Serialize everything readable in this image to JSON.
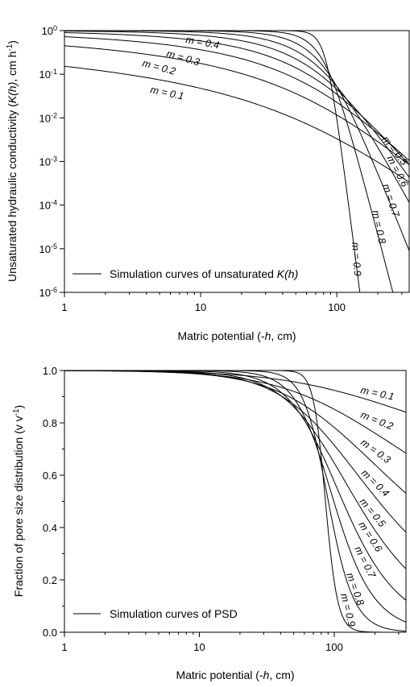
{
  "chart_data": [
    {
      "type": "line",
      "xlabel_prefix": "Matric potential (-",
      "xlabel_var": "h",
      "xlabel_suffix": ", cm)",
      "ylabel_prefix": "Unsaturated hydraulic conductivity (",
      "ylabel_var": "K(h)",
      "ylabel_suffix": ", cm h",
      "ylabel_sup": "-1",
      "ylabel_end": ")",
      "x_scale": "log",
      "y_scale": "log",
      "xlim": [
        1,
        340
      ],
      "ylim": [
        1e-06,
        1
      ],
      "x_ticks": [
        {
          "value": 1,
          "label": "1"
        },
        {
          "value": 10,
          "label": "10"
        },
        {
          "value": 100,
          "label": "100"
        }
      ],
      "y_ticks": [
        {
          "value": 1,
          "base": "10",
          "exp": "0"
        },
        {
          "value": 0.1,
          "base": "10",
          "exp": "-1"
        },
        {
          "value": 0.01,
          "base": "10",
          "exp": "-2"
        },
        {
          "value": 0.001,
          "base": "10",
          "exp": "-3"
        },
        {
          "value": 0.0001,
          "base": "10",
          "exp": "-4"
        },
        {
          "value": 1e-05,
          "base": "10",
          "exp": "-5"
        },
        {
          "value": 1e-06,
          "base": "10",
          "exp": "-6"
        }
      ],
      "model": {
        "alpha": 0.0118,
        "ks": 1
      },
      "series": [
        {
          "m": 0.1,
          "label": "m = 0.1"
        },
        {
          "m": 0.2,
          "label": "m = 0.2"
        },
        {
          "m": 0.3,
          "label": "m = 0.3"
        },
        {
          "m": 0.4,
          "label": "m = 0.4"
        },
        {
          "m": 0.5,
          "label": "m = 0.5"
        },
        {
          "m": 0.6,
          "label": "m = 0.6"
        },
        {
          "m": 0.7,
          "label": "m = 0.7"
        },
        {
          "m": 0.8,
          "label": "m = 0.8"
        },
        {
          "m": 0.9,
          "label": "m = 0.9"
        }
      ],
      "legend": {
        "position": "bottom-left",
        "text": "Simulation curves of unsaturated ",
        "text_var": "K(h)"
      },
      "grid": false
    },
    {
      "type": "line",
      "xlabel_prefix": "Matric potential (-",
      "xlabel_var": "h",
      "xlabel_suffix": ", cm)",
      "ylabel_prefix": "Fraction of pore size distribution (v v",
      "ylabel_sup": "-1",
      "ylabel_end": ")",
      "x_scale": "log",
      "y_scale": "linear",
      "xlim": [
        1,
        340
      ],
      "ylim": [
        0,
        1
      ],
      "x_ticks": [
        {
          "value": 1,
          "label": "1"
        },
        {
          "value": 10,
          "label": "10"
        },
        {
          "value": 100,
          "label": "100"
        }
      ],
      "y_ticks": [
        {
          "value": 0,
          "label": "0.0"
        },
        {
          "value": 0.2,
          "label": "0.2"
        },
        {
          "value": 0.4,
          "label": "0.4"
        },
        {
          "value": 0.6,
          "label": "0.6"
        },
        {
          "value": 0.8,
          "label": "0.8"
        },
        {
          "value": 1,
          "label": "1.0"
        }
      ],
      "model": {
        "alpha": 0.0118
      },
      "series": [
        {
          "m": 0.1,
          "label": "m = 0.1"
        },
        {
          "m": 0.2,
          "label": "m = 0.2"
        },
        {
          "m": 0.3,
          "label": "m = 0.3"
        },
        {
          "m": 0.4,
          "label": "m = 0.4"
        },
        {
          "m": 0.5,
          "label": "m = 0.5"
        },
        {
          "m": 0.6,
          "label": "m = 0.6"
        },
        {
          "m": 0.7,
          "label": "m = 0.7"
        },
        {
          "m": 0.8,
          "label": "m = 0.8"
        },
        {
          "m": 0.9,
          "label": "m = 0.9"
        }
      ],
      "legend": {
        "position": "bottom-left",
        "text": "Simulation curves of PSD"
      },
      "grid": false
    }
  ]
}
